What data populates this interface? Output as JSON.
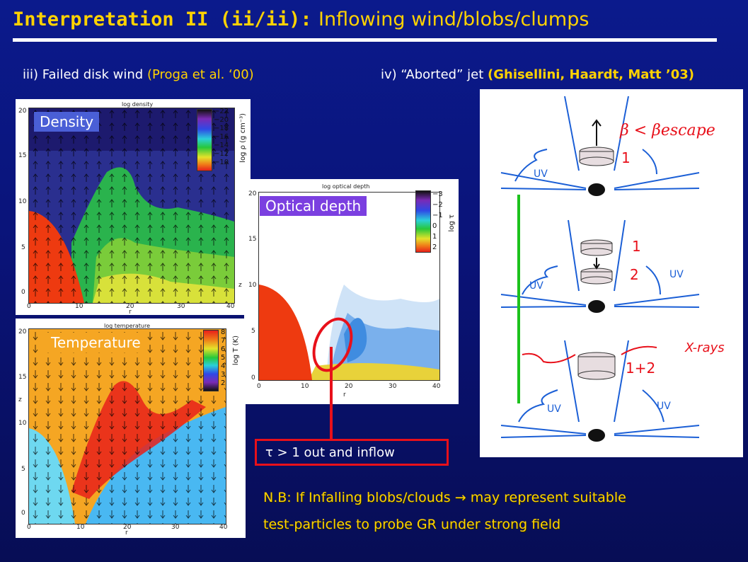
{
  "title": {
    "prefix": "Interpretation II (ii/ii):",
    "main": "Inflowing wind/blobs/clumps"
  },
  "left_heading": {
    "label": "iii) Failed disk wind",
    "citation": "(Proga et al. ‘00)"
  },
  "right_heading": {
    "label": "iv) “Aborted” jet",
    "citation": "(Ghisellini, Haardt, Matt ’03)"
  },
  "density_panel": {
    "plot_title": "log density",
    "badge": "Density",
    "x_label": "r",
    "y_label": "z",
    "x_ticks": [
      "0",
      "10",
      "20",
      "30",
      "40"
    ],
    "y_ticks": [
      "0",
      "5",
      "10",
      "15",
      "20"
    ],
    "colorbar_ticks": [
      "−22",
      "−20",
      "−18",
      "−16",
      "−14",
      "−12",
      "−10"
    ],
    "colorbar_label": "log ρ (g cm⁻³)"
  },
  "temperature_panel": {
    "plot_title": "log temperature",
    "badge": "Temperature",
    "x_label": "r",
    "y_label": "z",
    "x_ticks": [
      "0",
      "10",
      "20",
      "30",
      "40"
    ],
    "y_ticks": [
      "0",
      "5",
      "10",
      "15",
      "20"
    ],
    "colorbar_ticks": [
      "8",
      "7",
      "6",
      "5",
      "4",
      "3",
      "2"
    ],
    "colorbar_label": "log T (K)"
  },
  "optical_panel": {
    "plot_title": "log optical depth",
    "badge": "Optical depth",
    "x_label": "r",
    "y_label": "z",
    "x_ticks": [
      "0",
      "10",
      "20",
      "30",
      "40"
    ],
    "y_ticks": [
      "0",
      "5",
      "10",
      "15",
      "20"
    ],
    "colorbar_ticks": [
      "−3",
      "−2",
      "−1",
      "0",
      "1",
      "2"
    ],
    "colorbar_label": "log τ"
  },
  "callout": {
    "text": "τ > 1 out and inflow"
  },
  "note": {
    "line1": "N.B: If Infalling blobs/clouds → may represent suitable",
    "line2": "test-particles to probe GR under strong field"
  },
  "sketch": {
    "label_escape": "β < βescape",
    "label_1": "1",
    "label_1b": "1",
    "label_2": "2",
    "label_12": "1+2",
    "uv": "UV",
    "xrays": "X-rays"
  },
  "colors": {
    "title": "#ffd200",
    "background": "#0a1378",
    "callout_border": "#e8101a",
    "density_badge": "#4a5fd6",
    "optical_badge": "#7b3fe0",
    "temperature_badge": "#f5a623",
    "green_bar": "#1dc21d"
  }
}
